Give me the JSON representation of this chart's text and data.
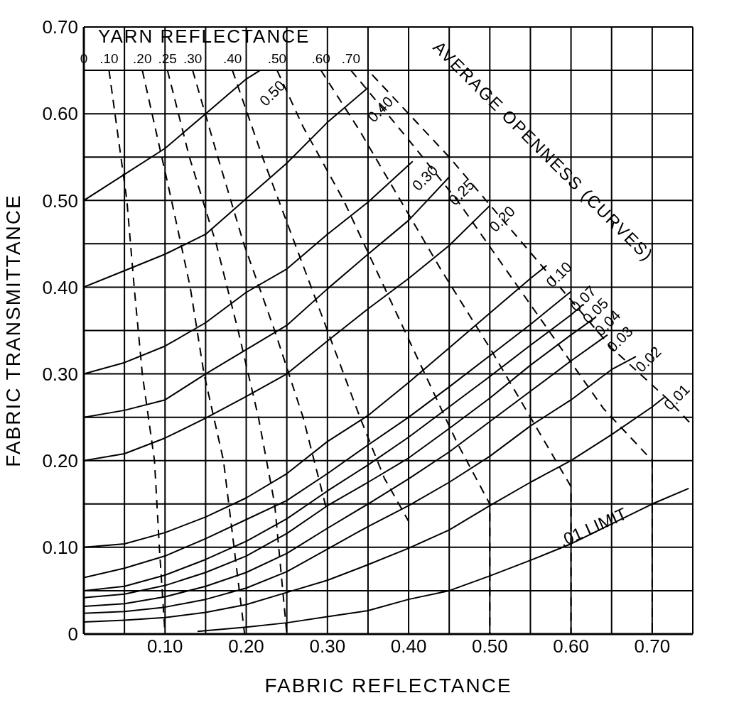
{
  "chart_data": {
    "type": "line",
    "xlabel": "FABRIC REFLECTANCE",
    "ylabel": "FABRIC TRANSMITTANCE",
    "xlim": [
      0,
      0.75
    ],
    "xticks": [
      {
        "value": 0,
        "label": null
      },
      {
        "value": 0.05,
        "label": null
      },
      {
        "value": 0.1,
        "label": "0.10"
      },
      {
        "value": 0.15,
        "label": null
      },
      {
        "value": 0.2,
        "label": "0.20"
      },
      {
        "value": 0.25,
        "label": null
      },
      {
        "value": 0.3,
        "label": "0.30"
      },
      {
        "value": 0.35,
        "label": null
      },
      {
        "value": 0.4,
        "label": "0.40"
      },
      {
        "value": 0.45,
        "label": null
      },
      {
        "value": 0.5,
        "label": "0.50"
      },
      {
        "value": 0.55,
        "label": null
      },
      {
        "value": 0.6,
        "label": "0.60"
      },
      {
        "value": 0.65,
        "label": null
      },
      {
        "value": 0.7,
        "label": "0.70"
      },
      {
        "value": 0.75,
        "label": null
      }
    ],
    "ylim": [
      0,
      0.7
    ],
    "yticks": [
      {
        "value": 0,
        "label": "0"
      },
      {
        "value": 0.05,
        "label": null
      },
      {
        "value": 0.1,
        "label": "0.10"
      },
      {
        "value": 0.15,
        "label": null
      },
      {
        "value": 0.2,
        "label": "0.20"
      },
      {
        "value": 0.25,
        "label": null
      },
      {
        "value": 0.3,
        "label": "0.30"
      },
      {
        "value": 0.35,
        "label": null
      },
      {
        "value": 0.4,
        "label": "0.40"
      },
      {
        "value": 0.45,
        "label": null
      },
      {
        "value": 0.5,
        "label": "0.50"
      },
      {
        "value": 0.55,
        "label": null
      },
      {
        "value": 0.6,
        "label": "0.60"
      },
      {
        "value": 0.65,
        "label": null
      },
      {
        "value": 0.7,
        "label": "0.70"
      }
    ],
    "grid": true,
    "marker": "none",
    "series": [
      {
        "name": "0.50",
        "color": "#000000",
        "line_style": "solid",
        "x": [
          0,
          0.05,
          0.1,
          0.15,
          0.2,
          0.217
        ],
        "values": [
          0.5,
          0.53,
          0.56,
          0.6,
          0.64,
          0.65
        ]
      },
      {
        "name": "0.40",
        "color": "#000000",
        "line_style": "solid",
        "x": [
          0,
          0.05,
          0.1,
          0.15,
          0.2,
          0.25,
          0.3,
          0.35
        ],
        "values": [
          0.4,
          0.419,
          0.438,
          0.461,
          0.502,
          0.543,
          0.59,
          0.63
        ]
      },
      {
        "name": "0.30",
        "color": "#000000",
        "line_style": "solid",
        "x": [
          0,
          0.05,
          0.1,
          0.15,
          0.2,
          0.25,
          0.3,
          0.35,
          0.405
        ],
        "values": [
          0.3,
          0.313,
          0.332,
          0.359,
          0.394,
          0.421,
          0.461,
          0.498,
          0.545
        ]
      },
      {
        "name": "0.25",
        "color": "#000000",
        "line_style": "solid",
        "x": [
          0,
          0.05,
          0.1,
          0.15,
          0.2,
          0.25,
          0.3,
          0.35,
          0.4,
          0.45
        ],
        "values": [
          0.25,
          0.258,
          0.27,
          0.3,
          0.328,
          0.356,
          0.398,
          0.438,
          0.477,
          0.527
        ]
      },
      {
        "name": "0.20",
        "color": "#000000",
        "line_style": "solid",
        "x": [
          0,
          0.05,
          0.1,
          0.15,
          0.2,
          0.25,
          0.3,
          0.35,
          0.4,
          0.45,
          0.5
        ],
        "values": [
          0.2,
          0.208,
          0.226,
          0.249,
          0.274,
          0.3,
          0.338,
          0.375,
          0.41,
          0.448,
          0.494
        ]
      },
      {
        "name": "0.10",
        "color": "#000000",
        "line_style": "solid",
        "x": [
          0,
          0.05,
          0.1,
          0.15,
          0.2,
          0.25,
          0.3,
          0.35,
          0.4,
          0.45,
          0.5,
          0.55,
          0.57
        ],
        "values": [
          0.1,
          0.104,
          0.117,
          0.135,
          0.157,
          0.185,
          0.222,
          0.252,
          0.29,
          0.33,
          0.37,
          0.41,
          0.425
        ]
      },
      {
        "name": "0.07",
        "color": "#000000",
        "line_style": "solid",
        "x": [
          0,
          0.05,
          0.1,
          0.15,
          0.2,
          0.25,
          0.3,
          0.35,
          0.4,
          0.45,
          0.5,
          0.55,
          0.6
        ],
        "values": [
          0.065,
          0.076,
          0.09,
          0.11,
          0.132,
          0.154,
          0.185,
          0.218,
          0.25,
          0.285,
          0.321,
          0.357,
          0.395
        ]
      },
      {
        "name": "0.05",
        "color": "#000000",
        "line_style": "solid",
        "x": [
          0,
          0.05,
          0.1,
          0.15,
          0.2,
          0.25,
          0.3,
          0.35,
          0.4,
          0.45,
          0.5,
          0.55,
          0.6,
          0.615
        ],
        "values": [
          0.05,
          0.055,
          0.068,
          0.086,
          0.107,
          0.133,
          0.165,
          0.195,
          0.227,
          0.262,
          0.297,
          0.333,
          0.368,
          0.38
        ]
      },
      {
        "name": "0.04",
        "color": "#000000",
        "line_style": "solid",
        "x": [
          0,
          0.05,
          0.1,
          0.15,
          0.2,
          0.25,
          0.3,
          0.35,
          0.4,
          0.45,
          0.5,
          0.55,
          0.6,
          0.63
        ],
        "values": [
          0.042,
          0.046,
          0.056,
          0.071,
          0.09,
          0.116,
          0.148,
          0.175,
          0.203,
          0.237,
          0.272,
          0.31,
          0.345,
          0.365
        ]
      },
      {
        "name": "0.03",
        "color": "#000000",
        "line_style": "solid",
        "x": [
          0,
          0.05,
          0.1,
          0.15,
          0.2,
          0.25,
          0.3,
          0.35,
          0.4,
          0.45,
          0.5,
          0.55,
          0.6,
          0.645
        ],
        "values": [
          0.032,
          0.035,
          0.043,
          0.055,
          0.071,
          0.093,
          0.122,
          0.15,
          0.179,
          0.21,
          0.245,
          0.28,
          0.315,
          0.345
        ]
      },
      {
        "name": "0.02",
        "color": "#000000",
        "line_style": "solid",
        "x": [
          0,
          0.05,
          0.1,
          0.15,
          0.2,
          0.25,
          0.3,
          0.35,
          0.4,
          0.45,
          0.5,
          0.55,
          0.6,
          0.65,
          0.68
        ],
        "values": [
          0.024,
          0.026,
          0.031,
          0.04,
          0.053,
          0.072,
          0.098,
          0.124,
          0.148,
          0.175,
          0.205,
          0.24,
          0.27,
          0.305,
          0.32
        ]
      },
      {
        "name": "0.01",
        "color": "#000000",
        "line_style": "solid",
        "x": [
          0,
          0.05,
          0.1,
          0.15,
          0.2,
          0.25,
          0.3,
          0.35,
          0.4,
          0.45,
          0.5,
          0.55,
          0.6,
          0.65,
          0.7,
          0.715
        ],
        "values": [
          0.014,
          0.016,
          0.019,
          0.025,
          0.034,
          0.048,
          0.062,
          0.08,
          0.099,
          0.12,
          0.148,
          0.175,
          0.2,
          0.23,
          0.262,
          0.273
        ]
      },
      {
        "color": "#000000",
        "line_style": "solid",
        "x": [
          0.14,
          0.2,
          0.25,
          0.3,
          0.35,
          0.4,
          0.45,
          0.5,
          0.55,
          0.6,
          0.65,
          0.7,
          0.745
        ],
        "values": [
          0.003,
          0.008,
          0.013,
          0.02,
          0.027,
          0.04,
          0.05,
          0.067,
          0.085,
          0.104,
          0.127,
          0.15,
          0.168
        ]
      },
      {
        "name": ".10",
        "color": "#000000",
        "line_style": "dashed",
        "x": [
          0.031,
          0.053,
          0.062,
          0.072,
          0.087,
          0.093,
          0.1
        ],
        "values": [
          0.65,
          0.5,
          0.4,
          0.3,
          0.2,
          0.1,
          0
        ]
      },
      {
        "name": ".20",
        "color": "#000000",
        "line_style": "dashed",
        "x": [
          0.072,
          0.108,
          0.131,
          0.148,
          0.172,
          0.185,
          0.198
        ],
        "values": [
          0.65,
          0.5,
          0.4,
          0.3,
          0.2,
          0.1,
          0
        ]
      },
      {
        "name": ".25",
        "color": "#000000",
        "line_style": "dashed",
        "x": [
          0.103,
          0.13,
          0.163,
          0.19,
          0.215,
          0.235,
          0.245,
          0.25
        ],
        "values": [
          0.65,
          0.55,
          0.45,
          0.35,
          0.25,
          0.15,
          0.05,
          0
        ]
      },
      {
        "name": ".30",
        "color": "#000000",
        "line_style": "dashed",
        "x": [
          0.134,
          0.165,
          0.197,
          0.235,
          0.27,
          0.3
        ],
        "values": [
          0.65,
          0.55,
          0.45,
          0.35,
          0.25,
          0.14
        ]
      },
      {
        "name": ".40",
        "color": "#000000",
        "line_style": "dashed",
        "x": [
          0.183,
          0.22,
          0.26,
          0.3,
          0.34,
          0.37,
          0.4
        ],
        "values": [
          0.65,
          0.55,
          0.45,
          0.35,
          0.25,
          0.18,
          0.13
        ]
      },
      {
        "name": ".50",
        "color": "#000000",
        "line_style": "dashed",
        "x": [
          0.238,
          0.27,
          0.32,
          0.37,
          0.42,
          0.46,
          0.5,
          0.5
        ],
        "values": [
          0.65,
          0.585,
          0.5,
          0.4,
          0.3,
          0.22,
          0.15,
          0
        ]
      },
      {
        "name": ".60",
        "color": "#000000",
        "line_style": "dashed",
        "x": [
          0.292,
          0.34,
          0.39,
          0.44,
          0.5,
          0.55,
          0.6,
          0.6
        ],
        "values": [
          0.65,
          0.58,
          0.5,
          0.42,
          0.33,
          0.25,
          0.17,
          0
        ]
      },
      {
        "name": ".70",
        "color": "#000000",
        "line_style": "dashed",
        "x": [
          0.329,
          0.4,
          0.46,
          0.52,
          0.58,
          0.64,
          0.7,
          0.7
        ],
        "values": [
          0.65,
          0.57,
          0.5,
          0.42,
          0.34,
          0.26,
          0.2,
          0
        ]
      },
      {
        "color": "#000000",
        "line_style": "dashed",
        "x": [
          0.355,
          0.45,
          0.55,
          0.65,
          0.72,
          0.75,
          0.75
        ],
        "values": [
          0.645,
          0.55,
          0.44,
          0.33,
          0.27,
          0.24,
          0
        ]
      }
    ],
    "annotations": [
      "YARN REFLECTANCE",
      "0",
      "AVERAGE OPENNESS (CURVES)",
      {
        "text": ".01 LIMIT",
        "x": 0.63,
        "y": 0.117
      }
    ]
  }
}
